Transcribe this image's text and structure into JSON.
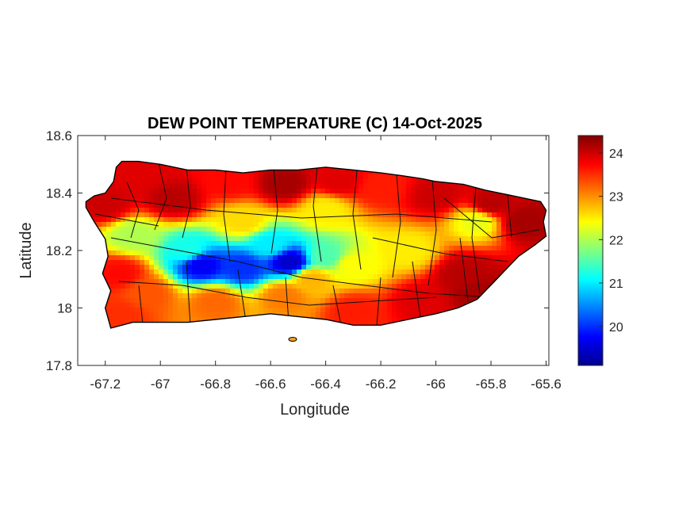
{
  "chart_data": {
    "type": "heatmap",
    "title": "DEW POINT TEMPERATURE (C) 14-Oct-2025",
    "xlabel": "Longitude",
    "ylabel": "Latitude",
    "xlim": [
      -67.3,
      -65.59
    ],
    "ylim": [
      17.8,
      18.6
    ],
    "x_ticks": [
      -67.2,
      -67,
      -66.8,
      -66.6,
      -66.4,
      -66.2,
      -66,
      -65.8,
      -65.6
    ],
    "x_tick_labels": [
      "-67.2",
      "-67",
      "-66.8",
      "-66.6",
      "-66.4",
      "-66.2",
      "-66",
      "-65.8",
      "-65.6"
    ],
    "y_ticks": [
      17.8,
      18,
      18.2,
      18.4,
      18.6
    ],
    "y_tick_labels": [
      "17.8",
      "18",
      "18.2",
      "18.4",
      "18.6"
    ],
    "colormap": "jet",
    "colorbar": {
      "range": [
        19.1,
        24.4
      ],
      "ticks": [
        20,
        21,
        22,
        23,
        24
      ],
      "tick_labels": [
        "20",
        "21",
        "22",
        "23",
        "24"
      ]
    },
    "colors": {
      "outline": "#000000",
      "map_background": "#ffffff"
    },
    "grid": false,
    "island_outline_lonlat": [
      [
        -67.27,
        18.37
      ],
      [
        -67.24,
        18.39
      ],
      [
        -67.2,
        18.4
      ],
      [
        -67.17,
        18.44
      ],
      [
        -67.16,
        18.49
      ],
      [
        -67.14,
        18.51
      ],
      [
        -67.08,
        18.51
      ],
      [
        -67.0,
        18.5
      ],
      [
        -66.9,
        18.48
      ],
      [
        -66.8,
        18.48
      ],
      [
        -66.7,
        18.47
      ],
      [
        -66.6,
        18.48
      ],
      [
        -66.5,
        18.48
      ],
      [
        -66.4,
        18.49
      ],
      [
        -66.3,
        18.48
      ],
      [
        -66.2,
        18.47
      ],
      [
        -66.12,
        18.46
      ],
      [
        -66.05,
        18.45
      ],
      [
        -66.0,
        18.44
      ],
      [
        -65.9,
        18.43
      ],
      [
        -65.82,
        18.41
      ],
      [
        -65.72,
        18.39
      ],
      [
        -65.62,
        18.37
      ],
      [
        -65.6,
        18.34
      ],
      [
        -65.61,
        18.3
      ],
      [
        -65.6,
        18.25
      ],
      [
        -65.64,
        18.22
      ],
      [
        -65.7,
        18.18
      ],
      [
        -65.75,
        18.13
      ],
      [
        -65.8,
        18.08
      ],
      [
        -65.85,
        18.03
      ],
      [
        -65.92,
        18.0
      ],
      [
        -66.0,
        17.98
      ],
      [
        -66.1,
        17.96
      ],
      [
        -66.2,
        17.94
      ],
      [
        -66.3,
        17.94
      ],
      [
        -66.4,
        17.96
      ],
      [
        -66.5,
        17.97
      ],
      [
        -66.6,
        17.98
      ],
      [
        -66.7,
        17.97
      ],
      [
        -66.8,
        17.96
      ],
      [
        -66.9,
        17.95
      ],
      [
        -67.0,
        17.95
      ],
      [
        -67.1,
        17.95
      ],
      [
        -67.18,
        17.93
      ],
      [
        -67.2,
        18.0
      ],
      [
        -67.18,
        18.06
      ],
      [
        -67.21,
        18.12
      ],
      [
        -67.19,
        18.18
      ],
      [
        -67.2,
        18.24
      ],
      [
        -67.24,
        18.3
      ],
      [
        -67.27,
        18.35
      ]
    ],
    "value_anchors": [
      {
        "lon": -67.2,
        "lat": 18.36,
        "value": 24.0
      },
      {
        "lon": -67.05,
        "lat": 18.47,
        "value": 23.9
      },
      {
        "lon": -66.95,
        "lat": 18.38,
        "value": 24.1
      },
      {
        "lon": -66.75,
        "lat": 18.44,
        "value": 23.7
      },
      {
        "lon": -66.55,
        "lat": 18.43,
        "value": 24.2
      },
      {
        "lon": -66.35,
        "lat": 18.44,
        "value": 23.9
      },
      {
        "lon": -66.2,
        "lat": 18.42,
        "value": 23.6
      },
      {
        "lon": -66.0,
        "lat": 18.39,
        "value": 24.0
      },
      {
        "lon": -65.8,
        "lat": 18.36,
        "value": 24.1
      },
      {
        "lon": -65.68,
        "lat": 18.3,
        "value": 24.2
      },
      {
        "lon": -65.85,
        "lat": 18.3,
        "value": 22.3
      },
      {
        "lon": -66.4,
        "lat": 18.34,
        "value": 22.5
      },
      {
        "lon": -66.7,
        "lat": 18.3,
        "value": 22.6
      },
      {
        "lon": -67.1,
        "lat": 18.25,
        "value": 22.0
      },
      {
        "lon": -66.9,
        "lat": 18.2,
        "value": 21.2
      },
      {
        "lon": -66.6,
        "lat": 18.22,
        "value": 21.0
      },
      {
        "lon": -66.85,
        "lat": 18.15,
        "value": 19.7
      },
      {
        "lon": -66.53,
        "lat": 18.16,
        "value": 19.5
      },
      {
        "lon": -66.7,
        "lat": 18.14,
        "value": 20.0
      },
      {
        "lon": -66.4,
        "lat": 18.18,
        "value": 21.5
      },
      {
        "lon": -66.3,
        "lat": 18.15,
        "value": 22.4
      },
      {
        "lon": -66.1,
        "lat": 18.2,
        "value": 22.5
      },
      {
        "lon": -65.9,
        "lat": 18.12,
        "value": 24.1
      },
      {
        "lon": -65.85,
        "lat": 18.05,
        "value": 24.2
      },
      {
        "lon": -66.05,
        "lat": 18.02,
        "value": 23.9
      },
      {
        "lon": -66.3,
        "lat": 17.99,
        "value": 23.6
      },
      {
        "lon": -66.55,
        "lat": 18.04,
        "value": 23.1
      },
      {
        "lon": -66.8,
        "lat": 18.02,
        "value": 23.2
      },
      {
        "lon": -67.05,
        "lat": 18.05,
        "value": 23.3
      },
      {
        "lon": -67.15,
        "lat": 18.12,
        "value": 23.7
      },
      {
        "lon": -67.15,
        "lat": 17.98,
        "value": 23.5
      },
      {
        "lon": -66.45,
        "lat": 18.1,
        "value": 22.8
      }
    ]
  }
}
